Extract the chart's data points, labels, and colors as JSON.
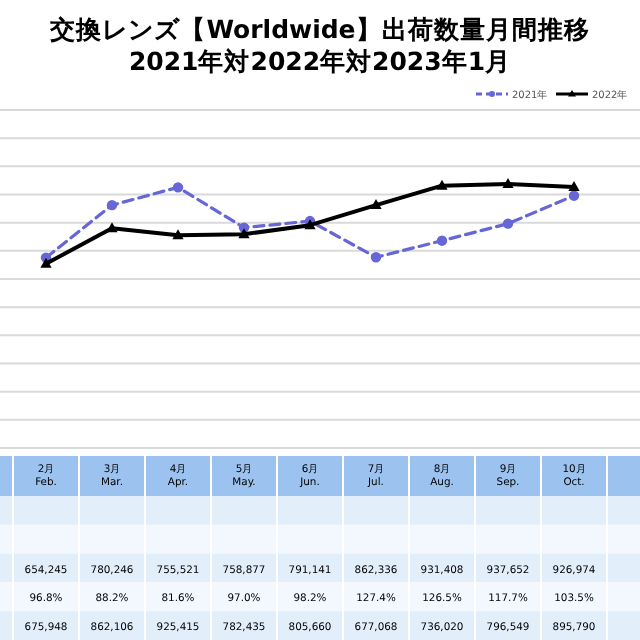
{
  "chart_data": {
    "type": "line",
    "title": "交換レンズ【Worldwide】出荷数量月間推移",
    "subtitle": "2021年対2022年対2023年1月",
    "categories": [
      "2月\nFeb.",
      "3月\nMar.",
      "4月\nApr.",
      "5月\nMay.",
      "6月\nJun.",
      "7月\nJul.",
      "8月\nAug.",
      "9月\nSep.",
      "10月\nOct."
    ],
    "series": [
      {
        "name": "2021年",
        "color": "#6666d6",
        "marker": "circle",
        "line_style": "dashed",
        "values": [
          675948,
          862106,
          925415,
          782435,
          805660,
          677068,
          736020,
          796549,
          895790
        ],
        "value_labels": [
          "675,948",
          "862,106",
          "925,415",
          "782,435",
          "805,660",
          "677,068",
          "736,020",
          "796,549",
          "895,790"
        ]
      },
      {
        "name": "2022年",
        "color": "#000000",
        "marker": "triangle",
        "line_style": "solid",
        "values": [
          654245,
          780246,
          755521,
          758877,
          791141,
          862336,
          931408,
          937652,
          926974
        ],
        "value_labels": [
          "654,245",
          "780,246",
          "755,521",
          "758,877",
          "791,141",
          "862,336",
          "931,408",
          "937,652",
          "926,974"
        ]
      }
    ],
    "annotations": [
      "96.8%",
      "88.2%",
      "81.6%",
      "97.0%",
      "98.2%",
      "127.4%",
      "126.5%",
      "117.7%",
      "103.5%"
    ],
    "ylim": [
      0,
      1200000
    ],
    "yticks": [
      {
        "value": 0,
        "label": null
      },
      {
        "value": 100000,
        "label": null
      },
      {
        "value": 200000,
        "label": null
      },
      {
        "value": 300000,
        "label": null
      },
      {
        "value": 400000,
        "label": null
      },
      {
        "value": 500000,
        "label": null
      },
      {
        "value": 600000,
        "label": null
      },
      {
        "value": 700000,
        "label": null
      },
      {
        "value": 800000,
        "label": null
      },
      {
        "value": 900000,
        "label": null
      },
      {
        "value": 1000000,
        "label": null
      },
      {
        "value": 1100000,
        "label": null
      },
      {
        "value": 1200000,
        "label": null
      }
    ],
    "grid": "y",
    "legend": "top right"
  }
}
